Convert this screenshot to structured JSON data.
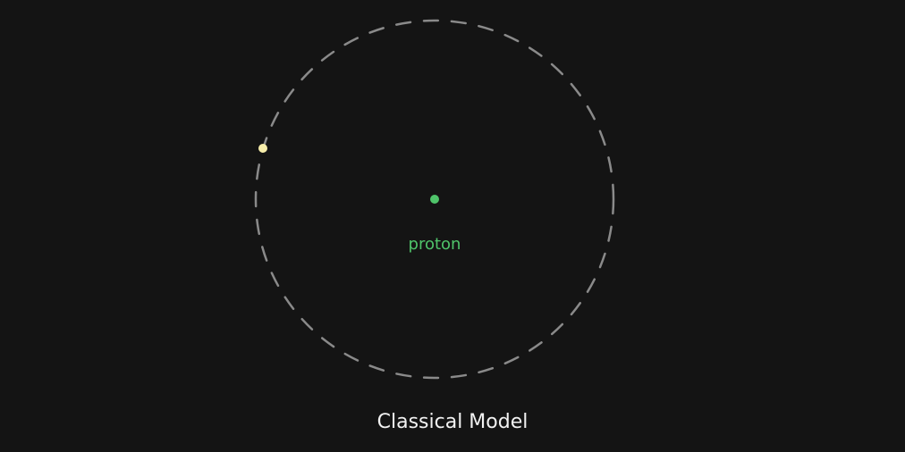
{
  "labels": {
    "nucleus": "proton",
    "caption": "Classical Model"
  },
  "colors": {
    "background": "#141414",
    "orbit": "#8a8a8a",
    "nucleus": "#4fc46a",
    "electron": "#f7eeaa",
    "caption": "#f2f2f2"
  }
}
